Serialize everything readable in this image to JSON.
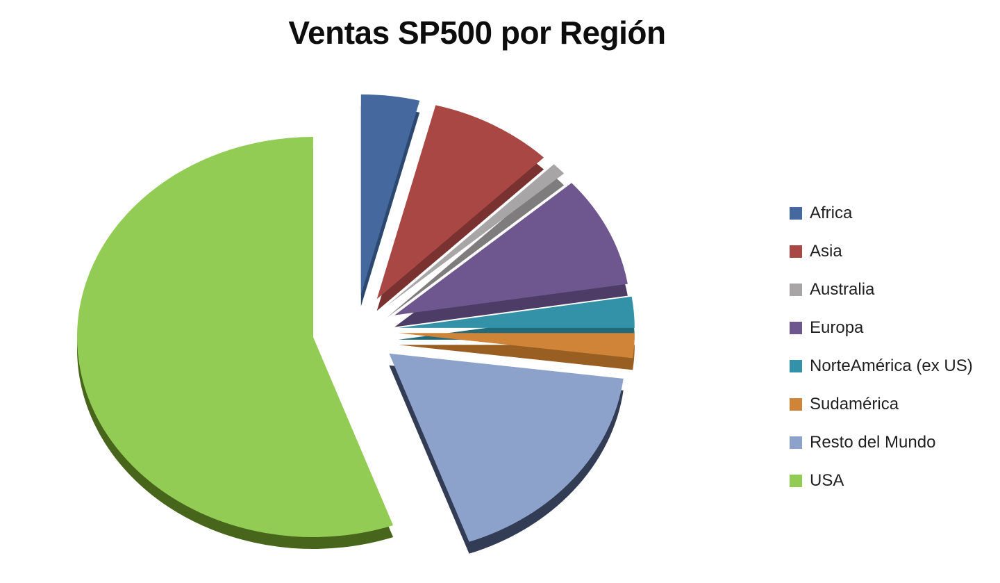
{
  "title": "Ventas SP500 por Región",
  "chart_data": {
    "type": "pie",
    "title": "Ventas SP500 por Región",
    "style": "3d-exploded",
    "direction": "clockwise",
    "start_angle_deg": 0,
    "legend_position": "right",
    "unit": "percent (estimated from slice angles; no data labels shown)",
    "slices": [
      {
        "label": "Africa",
        "value": 4,
        "color": "#45699E",
        "side_color": "#2C486F"
      },
      {
        "label": "Asia",
        "value": 8.5,
        "color": "#A94744",
        "side_color": "#7A3230"
      },
      {
        "label": "Australia",
        "value": 1,
        "color": "#A7A5A6",
        "side_color": "#7F7C7D"
      },
      {
        "label": "Europa",
        "value": 9,
        "color": "#6E578E",
        "side_color": "#4D3C66"
      },
      {
        "label": "NorteAmérica (ex US)",
        "value": 2.5,
        "color": "#3392A7",
        "side_color": "#226B7A"
      },
      {
        "label": "Sudamérica",
        "value": 2,
        "color": "#D08437",
        "side_color": "#985E22"
      },
      {
        "label": "Resto del Mundo",
        "value": 17.5,
        "color": "#8DA2CB",
        "side_color": "#323C55"
      },
      {
        "label": "USA",
        "value": 55.5,
        "color": "#92CC54",
        "side_color": "#48651C"
      }
    ]
  }
}
